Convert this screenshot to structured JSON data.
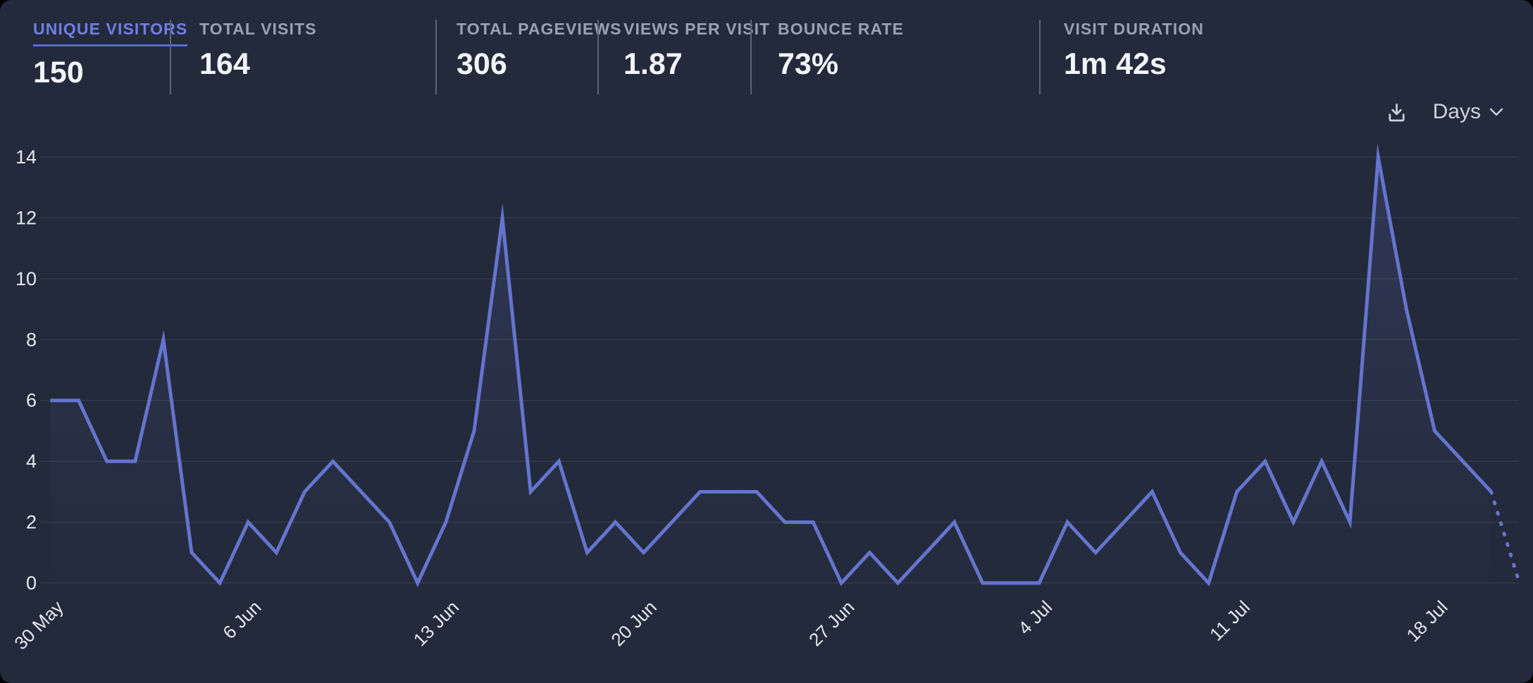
{
  "header": {
    "stats": [
      {
        "label": "UNIQUE VISITORS",
        "value": "150",
        "active": true
      },
      {
        "label": "TOTAL VISITS",
        "value": "164",
        "active": false
      },
      {
        "label": "TOTAL PAGEVIEWS",
        "value": "306",
        "active": false
      },
      {
        "label": "VIEWS PER VISIT",
        "value": "1.87",
        "active": false
      },
      {
        "label": "BOUNCE RATE",
        "value": "73%",
        "active": false
      },
      {
        "label": "VISIT DURATION",
        "value": "1m 42s",
        "active": false
      }
    ]
  },
  "controls": {
    "download_icon": "download-icon",
    "interval_label": "Days",
    "chevron_icon": "chevron-down-icon"
  },
  "colors": {
    "background": "#232a3b",
    "line": "#6574cd",
    "area_top": "rgba(101,116,205,0.18)",
    "area_bottom": "rgba(101,116,205,0.01)",
    "grid": "rgba(255,255,255,0.07)",
    "accent_active": "#707ee4",
    "accent_underline": "#5c6ad8",
    "stat_label": "#98a2b3",
    "stat_value": "#f1f4f8",
    "axis_text": "#e6e9ee"
  },
  "chart_data": {
    "type": "line",
    "title": "Unique visitors over time",
    "xlabel": "",
    "ylabel": "",
    "grid": true,
    "legend": false,
    "ylim": [
      0,
      14
    ],
    "yticks": [
      0,
      2,
      4,
      6,
      8,
      10,
      12,
      14
    ],
    "x": [
      "30 May",
      "31 May",
      "1 Jun",
      "2 Jun",
      "3 Jun",
      "4 Jun",
      "5 Jun",
      "6 Jun",
      "7 Jun",
      "8 Jun",
      "9 Jun",
      "10 Jun",
      "11 Jun",
      "12 Jun",
      "13 Jun",
      "14 Jun",
      "15 Jun",
      "16 Jun",
      "17 Jun",
      "18 Jun",
      "19 Jun",
      "20 Jun",
      "21 Jun",
      "22 Jun",
      "23 Jun",
      "24 Jun",
      "25 Jun",
      "26 Jun",
      "27 Jun",
      "28 Jun",
      "29 Jun",
      "30 Jun",
      "1 Jul",
      "2 Jul",
      "3 Jul",
      "4 Jul",
      "5 Jul",
      "6 Jul",
      "7 Jul",
      "8 Jul",
      "9 Jul",
      "10 Jul",
      "11 Jul",
      "12 Jul",
      "13 Jul",
      "14 Jul",
      "15 Jul",
      "16 Jul",
      "17 Jul",
      "18 Jul",
      "19 Jul",
      "20 Jul",
      "21 Jul"
    ],
    "series": [
      {
        "name": "Unique visitors",
        "values": [
          6,
          6,
          4,
          4,
          8,
          1,
          0,
          2,
          1,
          3,
          4,
          3,
          2,
          0,
          2,
          5,
          12,
          3,
          4,
          1,
          2,
          1,
          2,
          3,
          3,
          3,
          2,
          2,
          0,
          1,
          0,
          1,
          2,
          0,
          0,
          0,
          2,
          1,
          2,
          3,
          1,
          0,
          3,
          4,
          2,
          4,
          2,
          14,
          9,
          5,
          4,
          3,
          0
        ]
      }
    ],
    "dashed_from_index": 51,
    "x_tick_indices": [
      0,
      7,
      14,
      21,
      28,
      35,
      42,
      49
    ],
    "x_tick_labels": [
      "30 May",
      "6 Jun",
      "13 Jun",
      "20 Jun",
      "27 Jun",
      "4 Jul",
      "11 Jul",
      "18 Jul"
    ]
  }
}
